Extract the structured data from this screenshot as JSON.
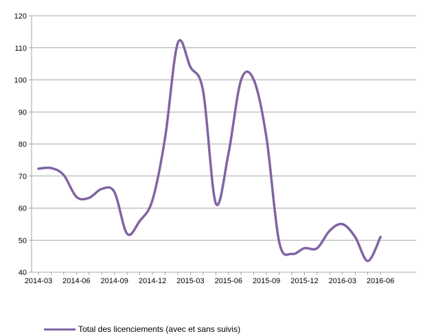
{
  "chart_data": {
    "type": "line",
    "title": "",
    "xlabel": "",
    "ylabel": "",
    "ylim": [
      40,
      120
    ],
    "yticks": [
      40,
      50,
      60,
      70,
      80,
      90,
      100,
      110,
      120
    ],
    "xticks": [
      "2014-03",
      "2014-06",
      "2014-09",
      "2014-12",
      "2015-03",
      "2015-06",
      "2015-09",
      "2015-12",
      "2016-03",
      "2016-06"
    ],
    "x": [
      "2014-03",
      "2014-04",
      "2014-05",
      "2014-06",
      "2014-07",
      "2014-08",
      "2014-09",
      "2014-10",
      "2014-11",
      "2014-12",
      "2015-01",
      "2015-02",
      "2015-03",
      "2015-04",
      "2015-05",
      "2015-06",
      "2015-07",
      "2015-08",
      "2015-09",
      "2015-10",
      "2015-11",
      "2015-12",
      "2016-01",
      "2016-02",
      "2016-03",
      "2016-04",
      "2016-05",
      "2016-06"
    ],
    "series": [
      {
        "name": "Total des licenciements (avec et sans suivis)",
        "values": [
          72.3,
          72.5,
          70.3,
          63.5,
          63.2,
          66.0,
          65.0,
          52.0,
          56.0,
          62.5,
          82.0,
          111.5,
          104.0,
          96.5,
          61.5,
          77.0,
          100.0,
          100.0,
          82.0,
          49.5,
          45.7,
          47.5,
          47.5,
          53.0,
          55.0,
          51.0,
          43.5,
          51.0
        ],
        "color": "#8064A2"
      }
    ],
    "grid": true,
    "legend": "bottom"
  }
}
